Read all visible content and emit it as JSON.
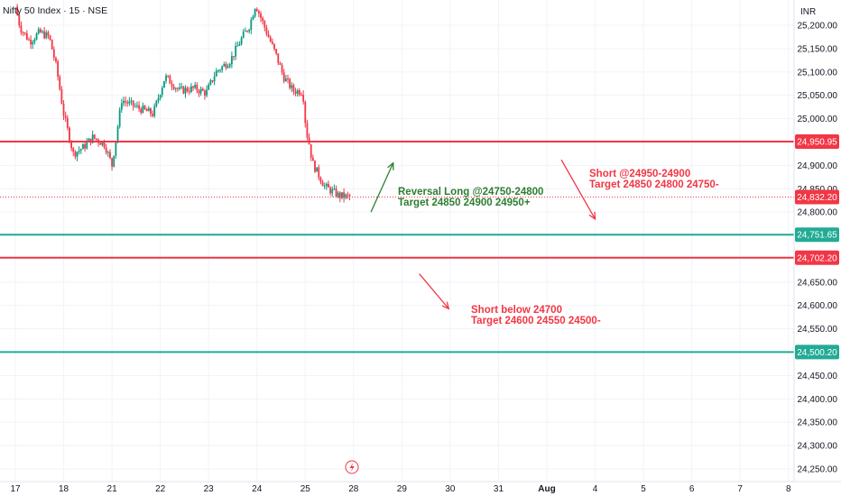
{
  "title": "Nifty 50 Index · 15 · NSE",
  "chart_data": {
    "type": "candlestick",
    "currency": "INR",
    "ylim": [
      24235,
      25255
    ],
    "yticks": [
      25200,
      25150,
      25100,
      25050,
      25000,
      24950,
      24900,
      24850,
      24800,
      24750,
      24700,
      24650,
      24600,
      24550,
      24500,
      24450,
      24400,
      24350,
      24300,
      24250
    ],
    "xlim": [
      17.0,
      38.7
    ],
    "xticks": [
      {
        "x": 17,
        "label": "17"
      },
      {
        "x": 18,
        "label": "18"
      },
      {
        "x": 19,
        "label": "21"
      },
      {
        "x": 20,
        "label": "22"
      },
      {
        "x": 21,
        "label": "23"
      },
      {
        "x": 22,
        "label": "24"
      },
      {
        "x": 23,
        "label": "25"
      },
      {
        "x": 24,
        "label": "28"
      },
      {
        "x": 25,
        "label": "29"
      },
      {
        "x": 26,
        "label": "30"
      },
      {
        "x": 27,
        "label": "31"
      },
      {
        "x": 28,
        "label": "Aug"
      },
      {
        "x": 29,
        "label": "4"
      },
      {
        "x": 30,
        "label": "5"
      },
      {
        "x": 31,
        "label": "6"
      },
      {
        "x": 32,
        "label": "7"
      },
      {
        "x": 33,
        "label": "8"
      }
    ],
    "levels": [
      {
        "name": "resistance",
        "value": 24950.95,
        "label": "24,950.95",
        "color": "#f23645"
      },
      {
        "name": "support",
        "value": 24751.65,
        "label": "24,751.65",
        "color": "#22ab94"
      },
      {
        "name": "breakdown",
        "value": 24702.2,
        "label": "24,702.20",
        "color": "#f23645"
      },
      {
        "name": "support2",
        "value": 24500.2,
        "label": "24,500.20",
        "color": "#22ab94"
      }
    ],
    "last_price": {
      "value": 24832.2,
      "label": "24,832.20",
      "color": "#f23645"
    },
    "annotations": [
      {
        "name": "reversal-long",
        "lines": [
          "Reversal Long  @24750-24800",
          "Target 24850 24900 24950+"
        ],
        "color": "#2e7d32"
      },
      {
        "name": "short-resistance",
        "lines": [
          "Short @24950-24900",
          "Target 24850 24800 24750-"
        ],
        "color": "#f23645"
      },
      {
        "name": "short-below",
        "lines": [
          "Short below 24700",
          "Target 24600 24550 24500-"
        ],
        "color": "#f23645"
      }
    ],
    "arrows": [
      {
        "name": "up-arrow",
        "from": [
          24.36,
          24800
        ],
        "to": [
          24.82,
          24905
        ],
        "color": "#2e7d32"
      },
      {
        "name": "down-arrow-1",
        "from": [
          28.3,
          24912
        ],
        "to": [
          29.0,
          24785
        ],
        "color": "#f23645"
      },
      {
        "name": "down-arrow-2",
        "from": [
          25.36,
          24668
        ],
        "to": [
          25.97,
          24593
        ],
        "color": "#f23645"
      }
    ],
    "anchors": [
      {
        "x": 17.0,
        "p": 25240
      },
      {
        "x": 17.1,
        "p": 25195
      },
      {
        "x": 17.3,
        "p": 25165
      },
      {
        "x": 17.5,
        "p": 25185
      },
      {
        "x": 17.7,
        "p": 25175
      },
      {
        "x": 17.85,
        "p": 25110
      },
      {
        "x": 18.0,
        "p": 25010
      },
      {
        "x": 18.2,
        "p": 24925
      },
      {
        "x": 18.4,
        "p": 24938
      },
      {
        "x": 18.6,
        "p": 24960
      },
      {
        "x": 18.85,
        "p": 24945
      },
      {
        "x": 19.0,
        "p": 24900
      },
      {
        "x": 19.2,
        "p": 25040
      },
      {
        "x": 19.5,
        "p": 25025
      },
      {
        "x": 19.85,
        "p": 25010
      },
      {
        "x": 20.1,
        "p": 25090
      },
      {
        "x": 20.4,
        "p": 25060
      },
      {
        "x": 20.7,
        "p": 25065
      },
      {
        "x": 20.95,
        "p": 25055
      },
      {
        "x": 21.15,
        "p": 25100
      },
      {
        "x": 21.45,
        "p": 25125
      },
      {
        "x": 21.7,
        "p": 25175
      },
      {
        "x": 21.85,
        "p": 25200
      },
      {
        "x": 21.97,
        "p": 25245
      },
      {
        "x": 22.2,
        "p": 25185
      },
      {
        "x": 22.4,
        "p": 25135
      },
      {
        "x": 22.55,
        "p": 25090
      },
      {
        "x": 22.75,
        "p": 25060
      },
      {
        "x": 22.95,
        "p": 25058
      },
      {
        "x": 23.0,
        "p": 24995
      },
      {
        "x": 23.15,
        "p": 24905
      },
      {
        "x": 23.4,
        "p": 24855
      },
      {
        "x": 23.7,
        "p": 24835
      },
      {
        "x": 23.95,
        "p": 24832
      }
    ],
    "candles_per_day": 25
  }
}
